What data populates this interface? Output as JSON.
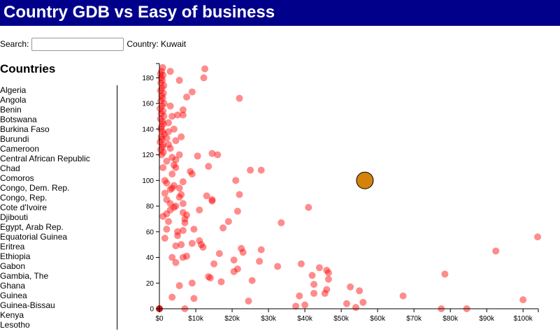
{
  "header": {
    "title": "Country GDB vs Easy of business"
  },
  "search": {
    "label": "Search:",
    "value": "",
    "placeholder": "",
    "country_text": "Country: Kuwait"
  },
  "sidebar": {
    "title": "Countries",
    "items": [
      "Algeria",
      "Angola",
      "Benin",
      "Botswana",
      "Burkina Faso",
      "Burundi",
      "Cameroon",
      "Central African Republic",
      "Chad",
      "Comoros",
      "Congo, Dem. Rep.",
      "Congo, Rep.",
      "Cote d'Ivoire",
      "Djibouti",
      "Egypt, Arab Rep.",
      "Equatorial Guinea",
      "Eritrea",
      "Ethiopia",
      "Gabon",
      "Gambia, The",
      "Ghana",
      "Guinea",
      "Guinea-Bissau",
      "Kenya",
      "Lesotho"
    ]
  },
  "colors": {
    "header_bg": "#00008b",
    "point": "#ff0000",
    "highlight": "#d4820a"
  },
  "chart_data": {
    "type": "scatter",
    "title": "",
    "xlabel": "",
    "ylabel": "",
    "xlim": [
      0,
      104000
    ],
    "ylim": [
      0,
      190
    ],
    "x_ticks": [
      0,
      10000,
      20000,
      30000,
      40000,
      50000,
      60000,
      70000,
      80000,
      90000,
      100000
    ],
    "x_tick_labels": [
      "$0",
      "$10k",
      "$20k",
      "$30k",
      "$40k",
      "$50k",
      "$60k",
      "$70k",
      "$80k",
      "$90k",
      "$100k"
    ],
    "y_ticks": [
      0,
      20,
      40,
      60,
      80,
      100,
      120,
      140,
      160,
      180
    ],
    "y_tick_labels": [
      "0",
      "20",
      "40",
      "60",
      "80",
      "100",
      "120",
      "140",
      "160",
      "180"
    ],
    "highlight": {
      "x": 56500,
      "y": 100
    },
    "points": [
      [
        900,
        188
      ],
      [
        600,
        185
      ],
      [
        300,
        183
      ],
      [
        1000,
        182
      ],
      [
        500,
        180
      ],
      [
        800,
        178
      ],
      [
        400,
        176
      ],
      [
        1200,
        174
      ],
      [
        700,
        172
      ],
      [
        300,
        170
      ],
      [
        1100,
        168
      ],
      [
        600,
        166
      ],
      [
        900,
        164
      ],
      [
        400,
        162
      ],
      [
        1300,
        160
      ],
      [
        700,
        158
      ],
      [
        200,
        156
      ],
      [
        1000,
        154
      ],
      [
        500,
        152
      ],
      [
        1200,
        150
      ],
      [
        300,
        148
      ],
      [
        800,
        146
      ],
      [
        1100,
        144
      ],
      [
        600,
        142
      ],
      [
        400,
        140
      ],
      [
        900,
        138
      ],
      [
        1300,
        136
      ],
      [
        500,
        134
      ],
      [
        700,
        132
      ],
      [
        200,
        130
      ],
      [
        1000,
        128
      ],
      [
        800,
        126
      ],
      [
        400,
        124
      ],
      [
        1100,
        122
      ],
      [
        600,
        120
      ],
      [
        3000,
        185
      ],
      [
        5500,
        178
      ],
      [
        12500,
        187
      ],
      [
        12200,
        180
      ],
      [
        9000,
        169
      ],
      [
        22000,
        164
      ],
      [
        7500,
        165
      ],
      [
        6500,
        155
      ],
      [
        6500,
        151
      ],
      [
        5000,
        151
      ],
      [
        3500,
        150
      ],
      [
        3000,
        158
      ],
      [
        2500,
        145
      ],
      [
        4000,
        140
      ],
      [
        2500,
        138
      ],
      [
        6000,
        134
      ],
      [
        2000,
        133
      ],
      [
        4500,
        131
      ],
      [
        2500,
        128
      ],
      [
        3000,
        125
      ],
      [
        5500,
        120
      ],
      [
        3500,
        118
      ],
      [
        4500,
        116
      ],
      [
        4000,
        112
      ],
      [
        4500,
        110
      ],
      [
        10500,
        119
      ],
      [
        14500,
        121
      ],
      [
        13500,
        111
      ],
      [
        8500,
        107
      ],
      [
        9000,
        105
      ],
      [
        6500,
        99
      ],
      [
        5500,
        94
      ],
      [
        4000,
        96
      ],
      [
        3500,
        94
      ],
      [
        3000,
        93
      ],
      [
        6000,
        89
      ],
      [
        5500,
        87
      ],
      [
        2000,
        85
      ],
      [
        3000,
        82
      ],
      [
        4500,
        80
      ],
      [
        4000,
        79
      ],
      [
        6500,
        82
      ],
      [
        3000,
        77
      ],
      [
        2000,
        74
      ],
      [
        6500,
        75
      ],
      [
        7500,
        73
      ],
      [
        11000,
        77
      ],
      [
        14500,
        84
      ],
      [
        14500,
        85
      ],
      [
        13000,
        88
      ],
      [
        22000,
        89
      ],
      [
        21000,
        100
      ],
      [
        21500,
        76
      ],
      [
        41000,
        79
      ],
      [
        2000,
        62
      ],
      [
        5000,
        60
      ],
      [
        5000,
        57
      ],
      [
        6500,
        61
      ],
      [
        7000,
        67
      ],
      [
        9500,
        62
      ],
      [
        7000,
        70
      ],
      [
        17500,
        63
      ],
      [
        19000,
        68
      ],
      [
        11000,
        53
      ],
      [
        11500,
        50
      ],
      [
        12000,
        48
      ],
      [
        9000,
        51
      ],
      [
        6000,
        50
      ],
      [
        4500,
        49
      ],
      [
        16500,
        43
      ],
      [
        22500,
        47
      ],
      [
        23000,
        44
      ],
      [
        27500,
        37
      ],
      [
        28000,
        46
      ],
      [
        3500,
        40
      ],
      [
        6500,
        40
      ],
      [
        7500,
        41
      ],
      [
        15000,
        35
      ],
      [
        4500,
        36
      ],
      [
        20500,
        38
      ],
      [
        21500,
        31
      ],
      [
        20500,
        29
      ],
      [
        25500,
        22
      ],
      [
        32500,
        33
      ],
      [
        39000,
        35
      ],
      [
        42000,
        26
      ],
      [
        44000,
        32
      ],
      [
        46000,
        30
      ],
      [
        46500,
        28
      ],
      [
        46500,
        23
      ],
      [
        42500,
        19
      ],
      [
        46000,
        15
      ],
      [
        45500,
        12
      ],
      [
        42500,
        12
      ],
      [
        52500,
        17
      ],
      [
        55000,
        14
      ],
      [
        38500,
        10
      ],
      [
        40000,
        3
      ],
      [
        37500,
        2
      ],
      [
        51500,
        4
      ],
      [
        54000,
        1
      ],
      [
        56000,
        5
      ],
      [
        67000,
        10
      ],
      [
        77500,
        0
      ],
      [
        78500,
        27
      ],
      [
        84500,
        0
      ],
      [
        92500,
        45
      ],
      [
        100000,
        7
      ],
      [
        104000,
        56
      ],
      [
        5500,
        18
      ],
      [
        9000,
        20
      ],
      [
        14000,
        24
      ],
      [
        13500,
        25
      ],
      [
        17000,
        21
      ],
      [
        3500,
        9
      ],
      [
        9500,
        8
      ],
      [
        24500,
        6
      ],
      [
        7000,
        0
      ],
      [
        2000,
        115
      ],
      [
        3500,
        105
      ],
      [
        1500,
        100
      ],
      [
        1000,
        110
      ],
      [
        2000,
        98
      ],
      [
        1500,
        90
      ],
      [
        1000,
        72
      ],
      [
        2500,
        68
      ],
      [
        1500,
        55
      ],
      [
        33500,
        67
      ],
      [
        28000,
        108
      ],
      [
        25000,
        108
      ],
      [
        16000,
        120
      ]
    ]
  }
}
